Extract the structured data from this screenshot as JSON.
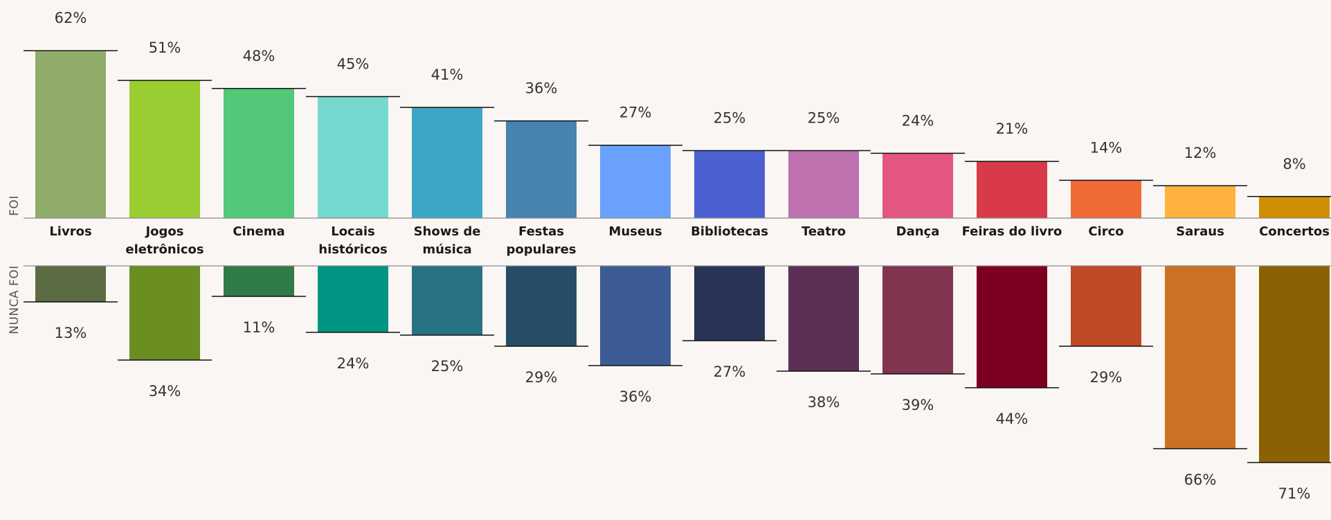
{
  "chart_data": {
    "type": "bar",
    "categories": [
      "Livros",
      "Jogos eletrônicos",
      "Cinema",
      "Locais históricos",
      "Shows de música",
      "Festas populares",
      "Museus",
      "Bibliotecas",
      "Teatro",
      "Dança",
      "Feiras do livro",
      "Circo",
      "Saraus",
      "Concertos"
    ],
    "category_lines": [
      [
        "Livros"
      ],
      [
        "Jogos",
        "eletrônicos"
      ],
      [
        "Cinema"
      ],
      [
        "Locais",
        "históricos"
      ],
      [
        "Shows de",
        "música"
      ],
      [
        "Festas",
        "populares"
      ],
      [
        "Museus"
      ],
      [
        "Bibliotecas"
      ],
      [
        "Teatro"
      ],
      [
        "Dança"
      ],
      [
        "Feiras do livro"
      ],
      [
        "Circo"
      ],
      [
        "Saraus"
      ],
      [
        "Concertos"
      ]
    ],
    "series": [
      {
        "name": "FOI",
        "values": [
          62,
          51,
          48,
          45,
          41,
          36,
          27,
          25,
          25,
          24,
          21,
          14,
          12,
          8
        ],
        "labels": [
          "62%",
          "51%",
          "48%",
          "45%",
          "41%",
          "36%",
          "27%",
          "25%",
          "25%",
          "24%",
          "21%",
          "14%",
          "12%",
          "8%"
        ],
        "colors": [
          "#8fac6a",
          "#9acd32",
          "#52c878",
          "#76d9cf",
          "#3ba7c4",
          "#4683af",
          "#6aa1ff",
          "#4b61d1",
          "#be72b0",
          "#e3567f",
          "#d93a4a",
          "#ef6a34",
          "#ffb23d",
          "#cf8f04"
        ]
      },
      {
        "name": "NUNCA FOI",
        "values": [
          13,
          34,
          11,
          24,
          25,
          29,
          36,
          27,
          38,
          39,
          44,
          29,
          66,
          71
        ],
        "labels": [
          "13%",
          "34%",
          "11%",
          "24%",
          "25%",
          "29%",
          "36%",
          "27%",
          "38%",
          "39%",
          "44%",
          "29%",
          "66%",
          "71%"
        ],
        "colors": [
          "#5b6b43",
          "#6a8e22",
          "#317b4a",
          "#009582",
          "#277283",
          "#274d68",
          "#3d5b94",
          "#293457",
          "#5b2f54",
          "#81334f",
          "#7e0021",
          "#be4a26",
          "#cb7124",
          "#8a6103"
        ]
      }
    ],
    "grid": false,
    "legend": "none"
  }
}
